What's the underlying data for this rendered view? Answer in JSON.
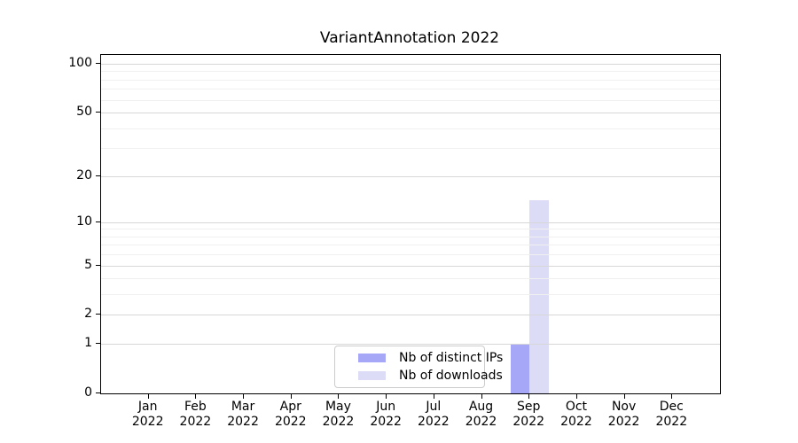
{
  "title": "VariantAnnotation 2022",
  "chart_data": {
    "type": "bar",
    "title": "VariantAnnotation 2022",
    "categories": [
      {
        "month": "Jan",
        "year": "2022"
      },
      {
        "month": "Feb",
        "year": "2022"
      },
      {
        "month": "Mar",
        "year": "2022"
      },
      {
        "month": "Apr",
        "year": "2022"
      },
      {
        "month": "May",
        "year": "2022"
      },
      {
        "month": "Jun",
        "year": "2022"
      },
      {
        "month": "Jul",
        "year": "2022"
      },
      {
        "month": "Aug",
        "year": "2022"
      },
      {
        "month": "Sep",
        "year": "2022"
      },
      {
        "month": "Oct",
        "year": "2022"
      },
      {
        "month": "Nov",
        "year": "2022"
      },
      {
        "month": "Dec",
        "year": "2022"
      }
    ],
    "series": [
      {
        "name": "Nb of distinct IPs",
        "color": "#a7a7f8",
        "values": [
          0,
          0,
          0,
          0,
          0,
          0,
          0,
          0,
          1,
          0,
          0,
          0
        ]
      },
      {
        "name": "Nb of downloads",
        "color": "#dcdcf7",
        "values": [
          0,
          0,
          0,
          0,
          0,
          0,
          0,
          0,
          14,
          0,
          0,
          0
        ]
      }
    ],
    "yscale": "log1p",
    "ylim": [
      0,
      113
    ],
    "yticks_major": [
      0,
      1,
      2,
      5,
      10,
      20,
      50,
      100
    ],
    "yticks_minor": [
      3,
      4,
      6,
      7,
      8,
      9,
      30,
      40,
      60,
      70,
      80,
      90
    ],
    "grid": true,
    "legend_position": "lower-center-inside"
  },
  "legend": {
    "items": [
      {
        "label": "Nb of distinct IPs",
        "color": "#a7a7f8"
      },
      {
        "label": "Nb of downloads",
        "color": "#dcdcf7"
      }
    ]
  },
  "colors": {
    "background": "#ffffff",
    "axis": "#000000",
    "grid_major": "#d7d7d7",
    "grid_minor": "#f0f0f0",
    "bar_distinct_ips": "#a7a7f8",
    "bar_downloads": "#dcdcf7",
    "legend_border": "#cccccc"
  }
}
